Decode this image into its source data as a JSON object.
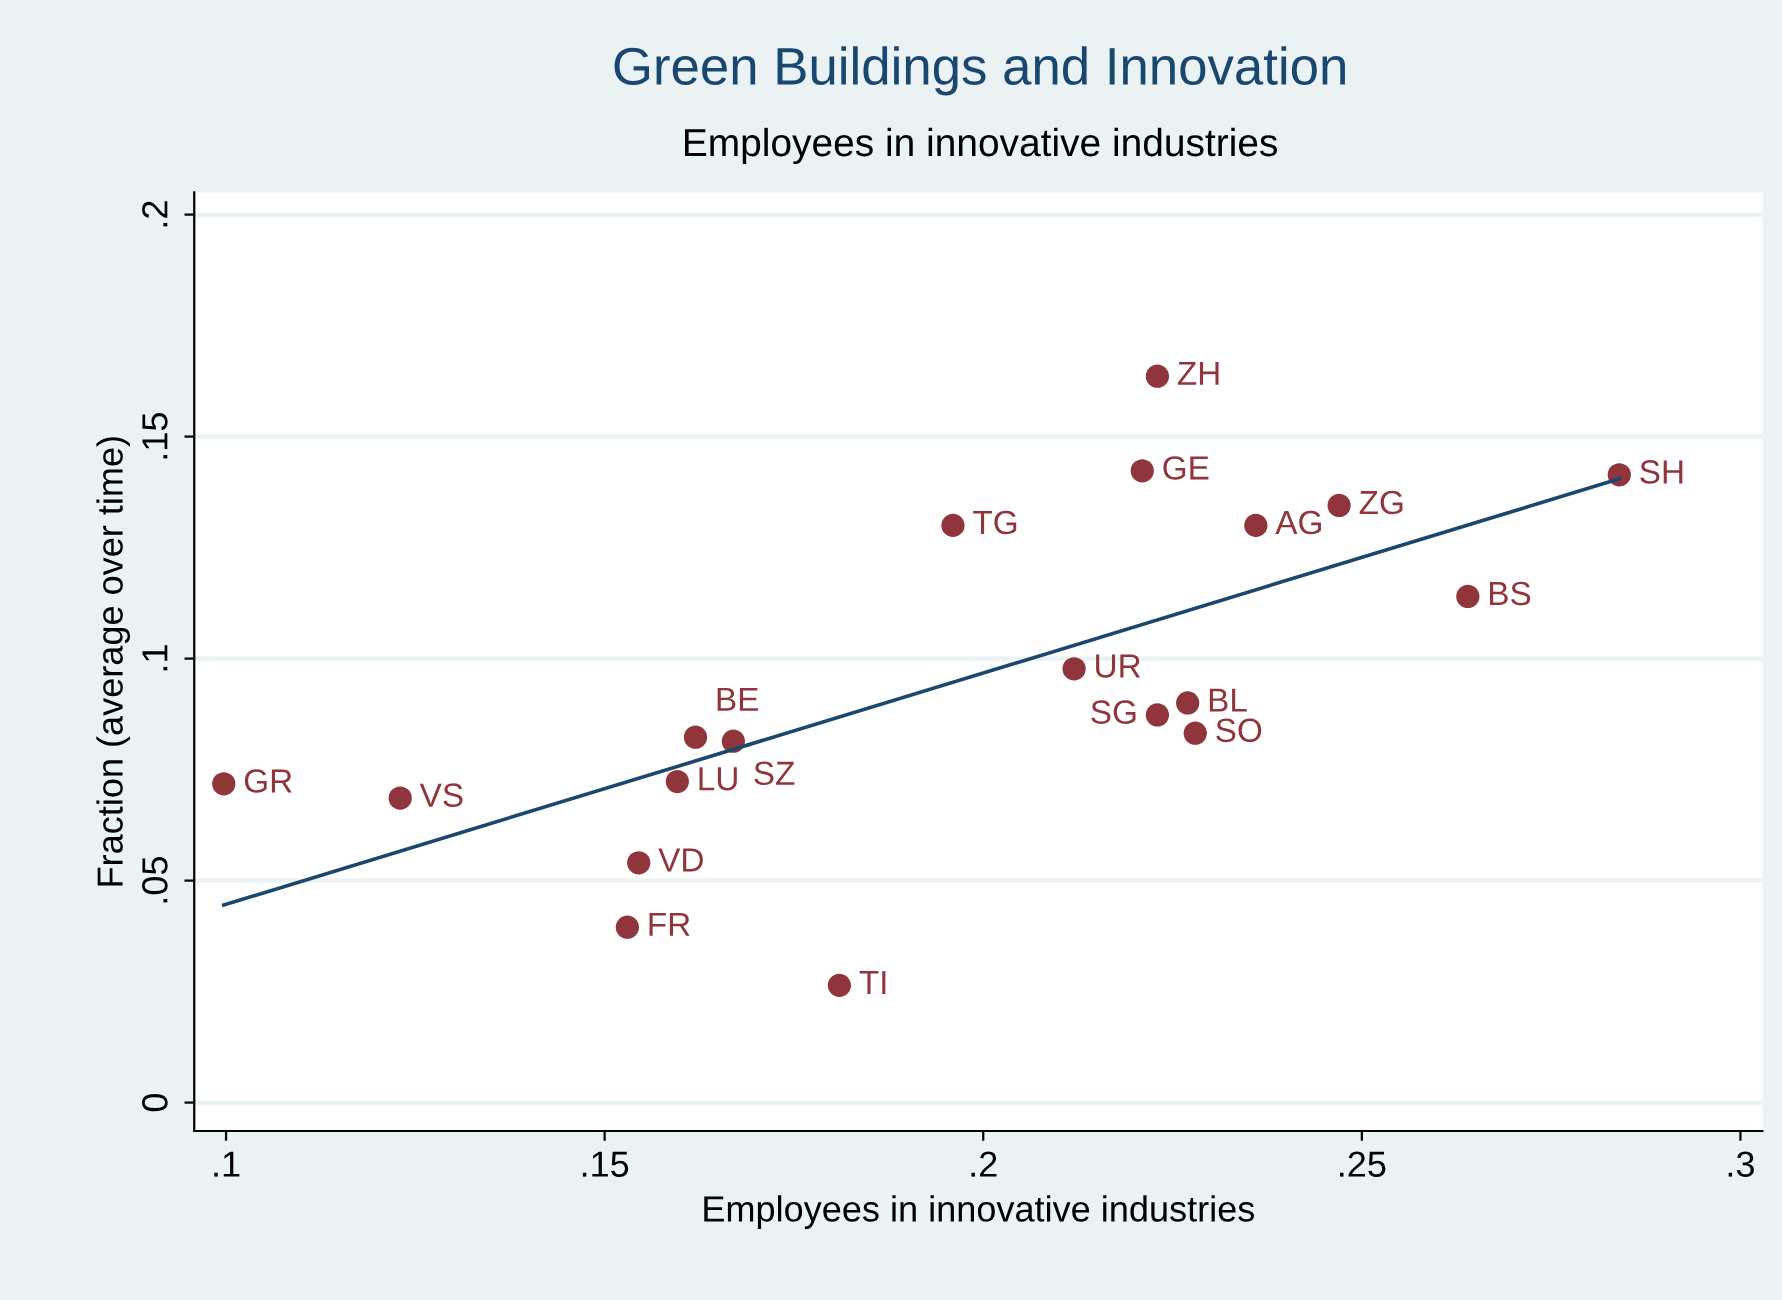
{
  "chart_data": {
    "type": "scatter",
    "title": "Green Buildings and Innovation",
    "subtitle": "Employees in innovative industries",
    "xlabel": "Employees in innovative industries",
    "ylabel": "Fraction (average over time)",
    "xlim": [
      0.0958,
      0.3029
    ],
    "ylim": [
      -0.0064,
      0.205
    ],
    "xticks": [
      {
        "value": 0.1,
        "label": ".1"
      },
      {
        "value": 0.15,
        "label": ".15"
      },
      {
        "value": 0.2,
        "label": ".2"
      },
      {
        "value": 0.25,
        "label": ".25"
      },
      {
        "value": 0.3,
        "label": ".3"
      }
    ],
    "yticks": [
      0,
      {
        "value": 0.05,
        "label": ".05"
      },
      {
        "value": 0.1,
        "label": ".1"
      },
      {
        "value": 0.15,
        "label": ".15"
      },
      {
        "value": 0.2,
        "label": ".2"
      }
    ],
    "grid": "y",
    "series": [
      {
        "marker": "circle",
        "color": "#90353b",
        "x": [
          0.0997,
          0.123,
          0.1545,
          0.153,
          0.1596,
          0.162,
          0.167,
          0.181,
          0.196,
          0.212,
          0.223,
          0.221,
          0.223,
          0.227,
          0.228,
          0.236,
          0.247,
          0.264,
          0.284
        ],
        "values": [
          0.0718,
          0.0686,
          0.054,
          0.0395,
          0.0723,
          0.0823,
          0.0814,
          0.0264,
          0.13,
          0.0977,
          0.1636,
          0.1423,
          0.0873,
          0.09,
          0.0832,
          0.13,
          0.1345,
          0.114,
          0.1414
        ],
        "value_labels": [
          "GR",
          "VS",
          "VD",
          "FR",
          "LU",
          "BE",
          "SZ",
          "TI",
          "TG",
          "UR",
          "ZH",
          "GE",
          "SG",
          "BL",
          "SO",
          "AG",
          "ZG",
          "BS",
          "SH"
        ]
      },
      {
        "type": "line",
        "color": "#1a476f",
        "x": [
          0.0997,
          0.284
        ],
        "values": [
          0.0445,
          0.1405
        ]
      }
    ]
  }
}
